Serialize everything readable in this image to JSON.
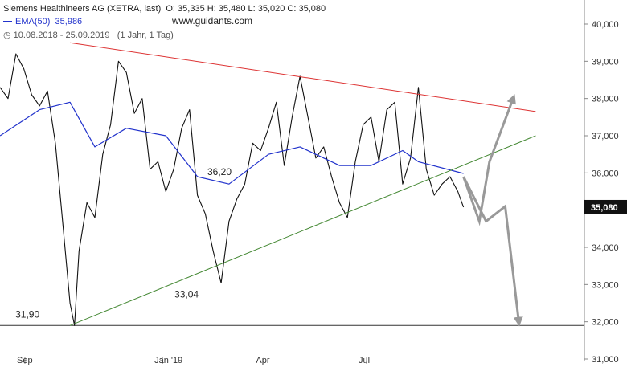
{
  "header": {
    "instrument": "Siemens Healthineers AG (XETRA, last)",
    "ohlc": "O: 35,335  H: 35,480  L: 35,020  C: 35,080",
    "ema_label": "EMA(50)",
    "ema_value": "35,986",
    "range": "10.08.2018 - 25.09.2019",
    "interval": "(1 Jahr, 1 Tag)",
    "watermark": "www.guidants.com"
  },
  "colors": {
    "price": "#111111",
    "ema": "#2233cc",
    "resistance": "#dd3333",
    "support": "#448833",
    "scenario_arrows": "#999999",
    "horizontal_line": "#333333",
    "last_price_badge": "#111111"
  },
  "chart_data": {
    "type": "line",
    "title": "Siemens Healthineers AG (XETRA, last)",
    "xlabel": "",
    "ylabel": "",
    "ylim": [
      31000,
      40500
    ],
    "y_ticks": [
      "40,000",
      "39,000",
      "38,000",
      "37,000",
      "36,000",
      "35,000",
      "34,000",
      "33,000",
      "32,000",
      "31,000"
    ],
    "x_ticks": [
      "Sep",
      "Jan '19",
      "Apr",
      "Jul"
    ],
    "last_price": "35,080",
    "grid": false,
    "series": [
      {
        "name": "Siemens Healthineers AG (XETRA, last)",
        "x": [
          "2018-08-10",
          "2018-08-17",
          "2018-08-24",
          "2018-08-31",
          "2018-09-07",
          "2018-09-14",
          "2018-09-21",
          "2018-09-28",
          "2018-10-05",
          "2018-10-11",
          "2018-10-15",
          "2018-10-19",
          "2018-10-26",
          "2018-11-02",
          "2018-11-09",
          "2018-11-16",
          "2018-11-23",
          "2018-11-30",
          "2018-12-07",
          "2018-12-14",
          "2018-12-21",
          "2018-12-28",
          "2019-01-04",
          "2019-01-11",
          "2019-01-18",
          "2019-01-25",
          "2019-02-01",
          "2019-02-08",
          "2019-02-15",
          "2019-02-22",
          "2019-03-01",
          "2019-03-08",
          "2019-03-15",
          "2019-03-22",
          "2019-03-29",
          "2019-04-05",
          "2019-04-12",
          "2019-04-19",
          "2019-04-26",
          "2019-05-03",
          "2019-05-10",
          "2019-05-17",
          "2019-05-24",
          "2019-05-31",
          "2019-06-07",
          "2019-06-14",
          "2019-06-21",
          "2019-06-28",
          "2019-07-05",
          "2019-07-12",
          "2019-07-19",
          "2019-07-26",
          "2019-08-02",
          "2019-08-09",
          "2019-08-16",
          "2019-08-23",
          "2019-08-30",
          "2019-09-06",
          "2019-09-13",
          "2019-09-20",
          "2019-09-25"
        ],
        "y": [
          38300,
          38000,
          39200,
          38800,
          38100,
          37800,
          38200,
          36800,
          34500,
          32500,
          31900,
          33900,
          35200,
          34800,
          36500,
          37300,
          39000,
          38700,
          37600,
          38000,
          36100,
          36300,
          35500,
          36100,
          37200,
          37700,
          35400,
          34900,
          33900,
          33040,
          34700,
          35300,
          35700,
          36800,
          36600,
          37200,
          37900,
          36200,
          37500,
          38600,
          37500,
          36400,
          36700,
          35900,
          35200,
          34800,
          36300,
          37300,
          37500,
          36300,
          37700,
          37900,
          35700,
          36400,
          38300,
          36100,
          35400,
          35700,
          35900,
          35500,
          35080
        ]
      },
      {
        "name": "EMA(50)",
        "x": [
          "2018-08-10",
          "2018-09-14",
          "2018-10-11",
          "2018-11-02",
          "2018-11-30",
          "2019-01-04",
          "2019-02-01",
          "2019-03-01",
          "2019-04-05",
          "2019-05-03",
          "2019-06-07",
          "2019-07-05",
          "2019-08-02",
          "2019-08-16",
          "2019-09-25"
        ],
        "y": [
          37000,
          37700,
          37900,
          36700,
          37200,
          37000,
          35900,
          35700,
          36500,
          36700,
          36200,
          36200,
          36600,
          36300,
          35986
        ]
      },
      {
        "name": "resistance",
        "x": [
          "2018-10-11",
          "2019-11-28"
        ],
        "y": [
          39500,
          37650
        ]
      },
      {
        "name": "support",
        "x": [
          "2018-10-11",
          "2019-11-28"
        ],
        "y": [
          31900,
          37000
        ]
      }
    ],
    "annotations": [
      {
        "text": "31,90",
        "x": "2018-10-11",
        "y": 31900
      },
      {
        "text": "33,04",
        "x": "2019-02-22",
        "y": 33040
      },
      {
        "text": "36,20",
        "x": "2019-04-05",
        "y": 36200
      }
    ],
    "horizontal_level": 31900,
    "scenario_paths": [
      {
        "x": [
          "2019-09-25",
          "2019-10-09",
          "2019-10-18",
          "2019-11-08"
        ],
        "y": [
          35900,
          34700,
          36300,
          38000
        ]
      },
      {
        "x": [
          "2019-09-25",
          "2019-10-15",
          "2019-11-01",
          "2019-11-13"
        ],
        "y": [
          35900,
          34700,
          35100,
          32000
        ]
      }
    ]
  }
}
